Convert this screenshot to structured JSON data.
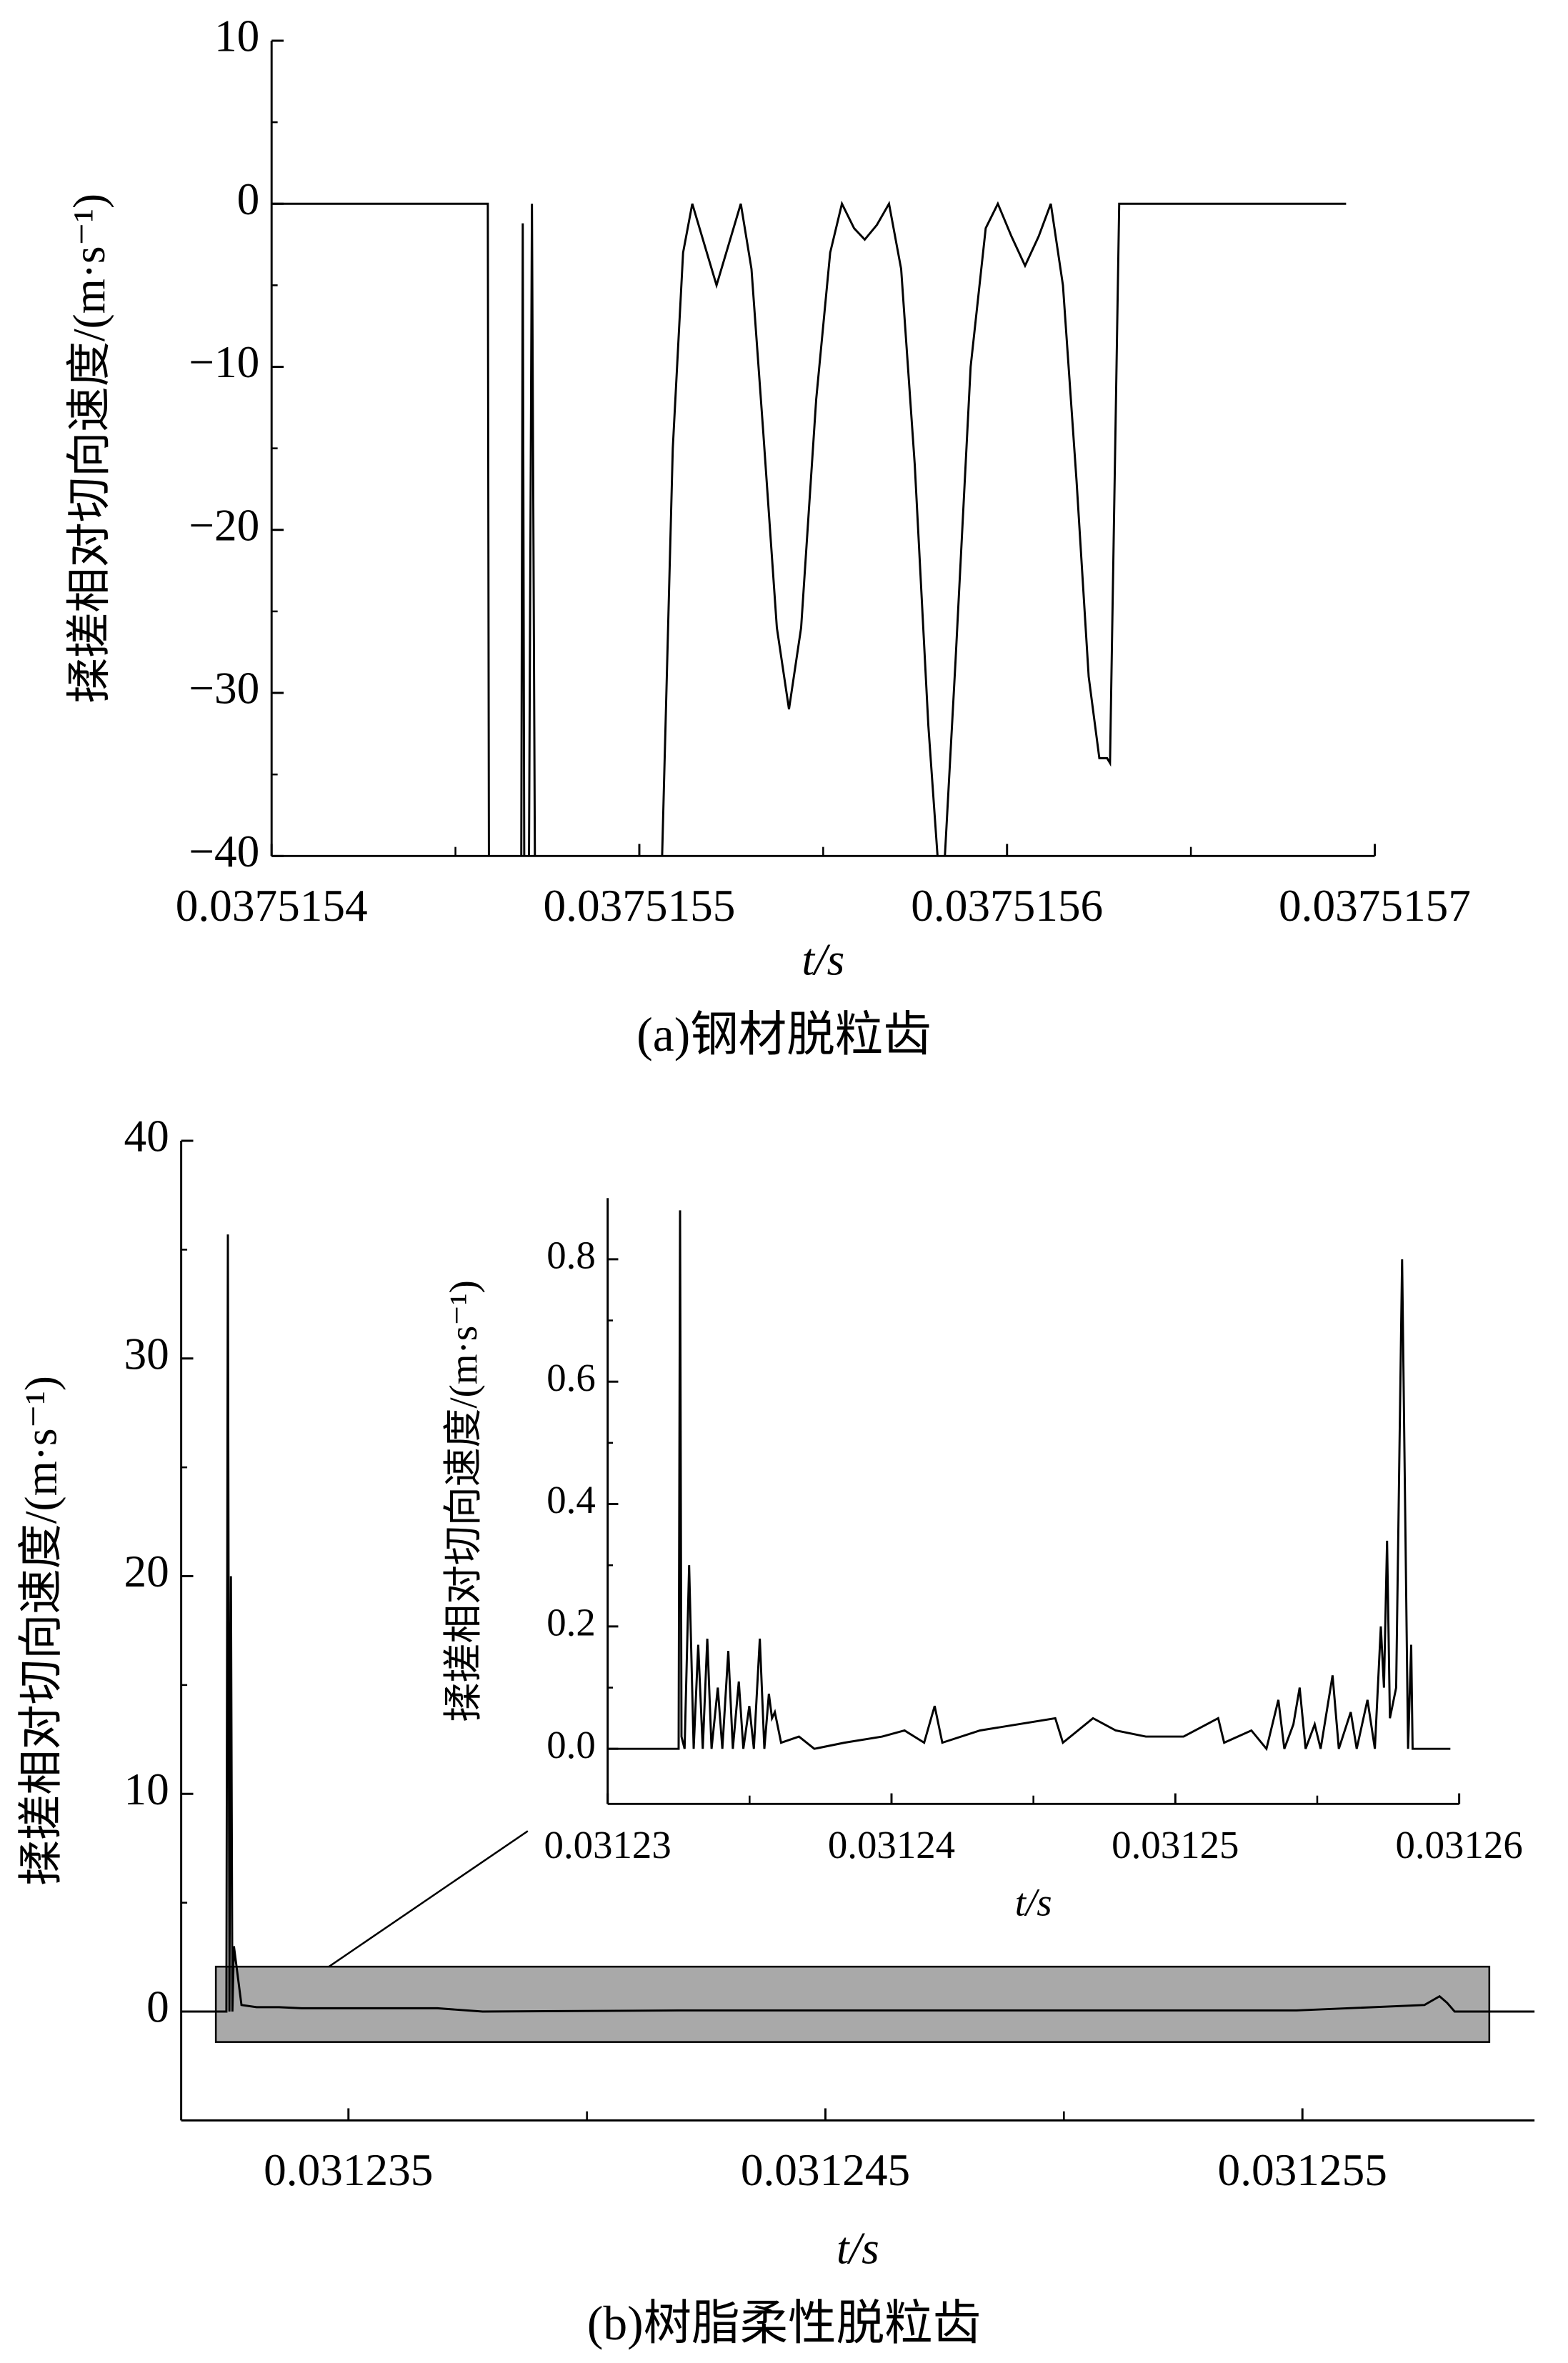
{
  "chart_data": [
    {
      "type": "line",
      "caption": "(a)钢材脱粒齿",
      "xlabel": "t/s",
      "ylabel": "揉搓相对切向速度/(m·s⁻¹)",
      "color": "#000000",
      "x": [
        0.0375154,
        0.0375154588,
        0.0375154591,
        null,
        0.0375154679,
        0.0375154683,
        0.0375154687,
        null,
        0.03751547,
        0.0375154708,
        0.0375154716,
        null,
        0.0375155062,
        0.0375155091,
        0.0375155119,
        0.0375155144,
        0.0375155177,
        0.037515521,
        0.0375155243,
        0.0375155276,
        0.0375155305,
        0.0375155337,
        0.0375155374,
        0.0375155407,
        0.037515544,
        0.0375155481,
        0.0375155519,
        0.0375155551,
        0.0375155584,
        0.0375155613,
        0.0375155646,
        0.0375155679,
        0.0375155712,
        0.0375155749,
        0.0375155786,
        0.0375155811,
        null,
        0.0375155831,
        0.037515586,
        0.0375155901,
        0.0375155942,
        0.0375155975,
        0.0375156012,
        0.0375156049,
        0.0375156086,
        0.0375156119,
        0.0375156152,
        0.0375156189,
        0.0375156222,
        0.0375156251,
        0.0375156272,
        0.037515628,
        0.0375156305,
        0.0375156922
      ],
      "values": [
        0,
        0,
        -40,
        null,
        -40,
        -1.2,
        -40,
        null,
        -40,
        0,
        -40,
        null,
        -40,
        -15,
        -3,
        0,
        -2.5,
        -5,
        -2.5,
        0,
        -4,
        -14,
        -26,
        -31,
        -26,
        -12,
        -3,
        0,
        -1.5,
        -2.2,
        -1.3,
        0,
        -4,
        -16,
        -32,
        -40,
        null,
        -40,
        -28,
        -10,
        -1.5,
        0,
        -2,
        -3.8,
        -2,
        0,
        -5,
        -17,
        -29,
        -34,
        -34,
        -34.3,
        0,
        0
      ],
      "xlim": [
        0.0375154,
        0.0375157
      ],
      "xticks": [
        0.0375154,
        0.0375155,
        0.0375156,
        0.0375157
      ],
      "xminorticks": [
        0.03751545,
        0.03751555,
        0.03751565
      ],
      "ylim": [
        -40,
        10
      ],
      "yticks": [
        10,
        0,
        {
          "value": -10,
          "label": "−10"
        },
        {
          "value": -20,
          "label": "−20"
        },
        {
          "value": -30,
          "label": "−30"
        },
        {
          "value": -40,
          "label": "−40"
        }
      ],
      "yminorticks": [
        5,
        -5,
        -15,
        -25,
        -35
      ]
    },
    {
      "type": "line",
      "caption": "(b)树脂柔性脱粒齿",
      "xlabel": "t/s",
      "ylabel": "揉搓相对切向速度/(m·s⁻¹)",
      "color": "#000000",
      "x": [
        0.031231493,
        0.031232441,
        0.031232472,
        0.031232504,
        0.031232536,
        0.031232567,
        0.031232599,
        0.031232757,
        0.031233073,
        0.031233547,
        0.031234021,
        0.031235126,
        0.031236864,
        0.031237812,
        0.031241919,
        0.031249818,
        0.031254874,
        0.031257559,
        0.031257875,
        0.031258033,
        0.031258191,
        0.031259866
      ],
      "values": [
        0,
        0,
        35.7,
        0,
        20,
        0,
        3,
        0.3,
        0.2,
        0.2,
        0.15,
        0.15,
        0.15,
        0,
        0.05,
        0.05,
        0.05,
        0.3,
        0.7,
        0.4,
        0,
        0
      ],
      "xlim": [
        0.031231493,
        0.031259866
      ],
      "xticks": [
        0.031235,
        0.031245,
        0.031255
      ],
      "xminorticks": [
        0.03124,
        0.03125
      ],
      "ylim": [
        -5,
        40
      ],
      "yticks": [
        0,
        10,
        20,
        30,
        40
      ],
      "yminorticks": [
        5,
        15,
        25,
        35
      ]
    },
    {
      "type": "line",
      "xlabel": "t/s",
      "ylabel": "揉搓相对切向速度/(m·s⁻¹)",
      "color": "#000000",
      "x": [
        0.03123,
        0.0312325,
        0.03123255,
        0.0312326,
        0.03123271,
        0.03123287,
        0.03123303,
        0.03123319,
        0.03123335,
        0.03123351,
        0.03123366,
        0.03123388,
        0.03123404,
        0.03123425,
        0.03123441,
        0.03123462,
        0.03123478,
        0.03123499,
        0.03123515,
        0.03123536,
        0.03123552,
        0.03123568,
        0.03123579,
        0.03123589,
        0.03123611,
        0.03123674,
        0.03123728,
        0.03123834,
        0.03123967,
        0.03124046,
        0.03124115,
        0.03124152,
        0.03124179,
        0.03124312,
        0.03124445,
        0.03124577,
        0.03124604,
        0.0312471,
        0.0312479,
        0.03124896,
        0.03125029,
        0.03125151,
        0.03125172,
        0.03125268,
        0.03125321,
        0.03125363,
        0.03125384,
        0.03125416,
        0.03125438,
        0.03125459,
        0.03125491,
        0.03125512,
        0.03125554,
        0.03125576,
        0.03125618,
        0.03125639,
        0.03125677,
        0.03125703,
        0.03125724,
        0.03125735,
        0.03125746,
        0.03125756,
        0.03125778,
        0.03125799,
        0.0312582,
        0.03125831,
        0.03125836,
        0.03125969
      ],
      "values": [
        0,
        0,
        0.88,
        0.02,
        0,
        0.3,
        0,
        0.17,
        0,
        0.18,
        0,
        0.1,
        0,
        0.16,
        0,
        0.11,
        0,
        0.07,
        0,
        0.18,
        0,
        0.09,
        0.05,
        0.06,
        0.01,
        0.02,
        0,
        0.01,
        0.02,
        0.03,
        0.01,
        0.07,
        0.01,
        0.03,
        0.04,
        0.05,
        0.01,
        0.05,
        0.03,
        0.02,
        0.02,
        0.05,
        0.01,
        0.03,
        0,
        0.08,
        0,
        0.04,
        0.1,
        0,
        0.04,
        0,
        0.12,
        0,
        0.06,
        0,
        0.08,
        0,
        0.2,
        0.1,
        0.34,
        0.05,
        0.1,
        0.8,
        0,
        0.17,
        0,
        0
      ],
      "xlim": [
        0.03123,
        0.03126
      ],
      "xticks": [
        0.03123,
        0.03124,
        0.03125,
        0.03126
      ],
      "xminorticks": [
        0.031235,
        0.031245,
        0.031255
      ],
      "ylim": [
        -0.09,
        0.9
      ],
      "yticks": [
        {
          "value": 0,
          "label": "0.0"
        },
        0.2,
        0.4,
        0.6,
        0.8
      ],
      "yminorticks": [
        0.1,
        0.3,
        0.5,
        0.7
      ]
    }
  ]
}
